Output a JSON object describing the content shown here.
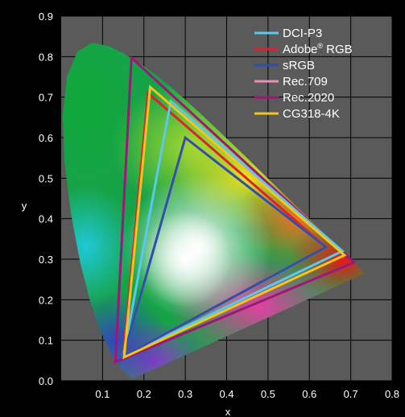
{
  "chart_data": {
    "type": "scatter",
    "title": "",
    "xlabel": "x",
    "ylabel": "y",
    "xlim": [
      0,
      0.8
    ],
    "ylim": [
      0,
      0.9
    ],
    "x_ticks": [
      "0.1",
      "0.2",
      "0.3",
      "0.4",
      "0.5",
      "0.6",
      "0.7",
      "0.8"
    ],
    "y_ticks": [
      "0.0",
      "0.1",
      "0.2",
      "0.3",
      "0.4",
      "0.5",
      "0.6",
      "0.7",
      "0.8",
      "0.9"
    ],
    "grid": true,
    "background": "#5a5a5a",
    "legend_position": "top-right",
    "spectral_locus": [
      [
        0.1741,
        0.005
      ],
      [
        0.1738,
        0.0049
      ],
      [
        0.1733,
        0.0048
      ],
      [
        0.1726,
        0.0048
      ],
      [
        0.1714,
        0.0051
      ],
      [
        0.1689,
        0.0069
      ],
      [
        0.1644,
        0.0109
      ],
      [
        0.1566,
        0.0177
      ],
      [
        0.144,
        0.0297
      ],
      [
        0.1241,
        0.0578
      ],
      [
        0.0913,
        0.1327
      ],
      [
        0.0687,
        0.2007
      ],
      [
        0.0454,
        0.295
      ],
      [
        0.0235,
        0.4127
      ],
      [
        0.0082,
        0.5384
      ],
      [
        0.0039,
        0.6548
      ],
      [
        0.0139,
        0.7502
      ],
      [
        0.0389,
        0.812
      ],
      [
        0.0743,
        0.8338
      ],
      [
        0.1142,
        0.8262
      ],
      [
        0.1547,
        0.8059
      ],
      [
        0.1929,
        0.7816
      ],
      [
        0.2296,
        0.7543
      ],
      [
        0.2658,
        0.7243
      ],
      [
        0.3016,
        0.6923
      ],
      [
        0.3373,
        0.6589
      ],
      [
        0.3731,
        0.6245
      ],
      [
        0.4087,
        0.5896
      ],
      [
        0.4441,
        0.5547
      ],
      [
        0.4788,
        0.5202
      ],
      [
        0.5125,
        0.4866
      ],
      [
        0.5448,
        0.4544
      ],
      [
        0.5752,
        0.4242
      ],
      [
        0.6029,
        0.3965
      ],
      [
        0.627,
        0.3725
      ],
      [
        0.6482,
        0.3514
      ],
      [
        0.6658,
        0.334
      ],
      [
        0.6801,
        0.3197
      ],
      [
        0.6915,
        0.3083
      ],
      [
        0.7006,
        0.2993
      ],
      [
        0.7079,
        0.292
      ],
      [
        0.714,
        0.2859
      ],
      [
        0.719,
        0.2809
      ],
      [
        0.723,
        0.277
      ],
      [
        0.726,
        0.274
      ],
      [
        0.7283,
        0.2717
      ],
      [
        0.73,
        0.27
      ],
      [
        0.7347,
        0.2653
      ]
    ],
    "series": [
      {
        "name": "DCI-P3",
        "color": "#5bc8f0",
        "points": [
          [
            0.68,
            0.32
          ],
          [
            0.265,
            0.69
          ],
          [
            0.15,
            0.06
          ]
        ]
      },
      {
        "name": "Adobe® RGB",
        "color": "#e0202a",
        "points": [
          [
            0.64,
            0.33
          ],
          [
            0.21,
            0.71
          ],
          [
            0.15,
            0.06
          ]
        ]
      },
      {
        "name": "sRGB",
        "color": "#2f4fa8",
        "points": [
          [
            0.64,
            0.33
          ],
          [
            0.3,
            0.6
          ],
          [
            0.15,
            0.06
          ]
        ]
      },
      {
        "name": "Rec.709",
        "color": "#f08cb8",
        "points": [
          [
            0.64,
            0.33
          ],
          [
            0.3,
            0.6
          ],
          [
            0.15,
            0.06
          ]
        ]
      },
      {
        "name": "Rec.2020",
        "color": "#a0157a",
        "points": [
          [
            0.708,
            0.292
          ],
          [
            0.17,
            0.797
          ],
          [
            0.131,
            0.046
          ]
        ]
      },
      {
        "name": "CG318-4K",
        "color": "#f5c518",
        "points": [
          [
            0.685,
            0.31
          ],
          [
            0.215,
            0.725
          ],
          [
            0.152,
            0.058
          ]
        ]
      }
    ]
  }
}
